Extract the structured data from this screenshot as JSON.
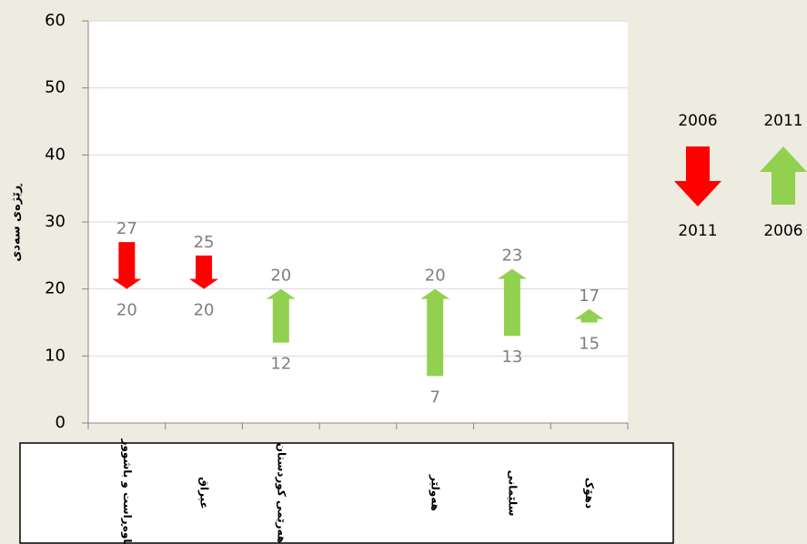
{
  "chart_data": {
    "type": "arrow",
    "y_label": "ڕێژەی سەدی",
    "categories": [
      "ناوەڕاست و باشوور",
      "عیراق",
      "هەرێمی کوردستان",
      null,
      "هەولێر",
      "سلێمانی",
      "دهۆک"
    ],
    "series": [
      {
        "name": "2006",
        "values": [
          27,
          25,
          12,
          null,
          7,
          13,
          15
        ]
      },
      {
        "name": "2011",
        "values": [
          20,
          20,
          20,
          null,
          20,
          23,
          17
        ]
      }
    ],
    "down_color": "#ff0000",
    "up_color": "#92d050",
    "ylim": [
      0,
      60
    ],
    "yticks": [
      0,
      10,
      20,
      30,
      40,
      50,
      60
    ],
    "grid": true
  }
}
